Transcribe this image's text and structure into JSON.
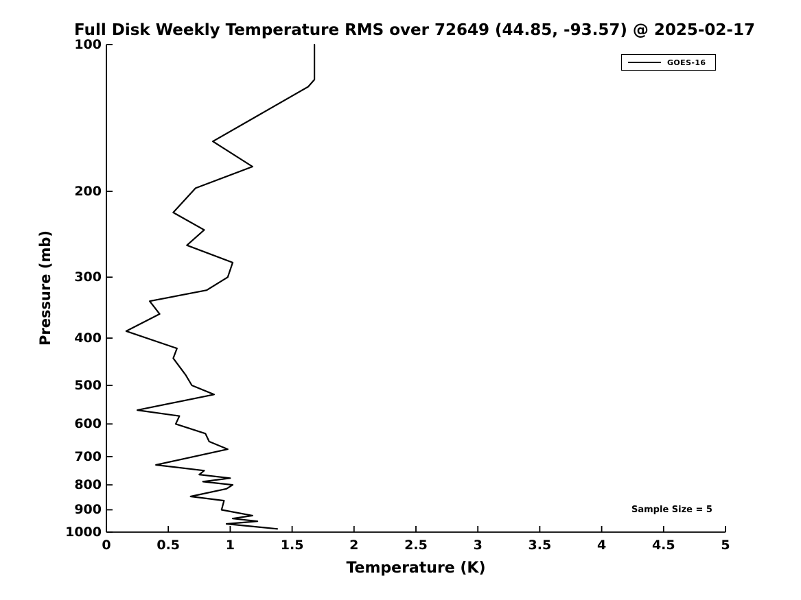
{
  "legend": {
    "label": "GOES-16"
  },
  "annotation": {
    "sample_size": "Sample Size = 5"
  },
  "chart_data": {
    "type": "line",
    "title": "Full Disk Weekly Temperature RMS over 72649 (44.85, -93.57) @ 2025-02-17",
    "xlabel": "Temperature (K)",
    "ylabel": "Pressure (mb)",
    "xlim": [
      0,
      5
    ],
    "ylim": [
      100,
      1000
    ],
    "y_scale": "log",
    "y_inverted": true,
    "grid": false,
    "legend_position": "top-right",
    "line_color": "#000000",
    "x_ticks": [
      0,
      0.5,
      1,
      1.5,
      2,
      2.5,
      3,
      3.5,
      4,
      4.5,
      5
    ],
    "x_tick_labels": [
      "0",
      "0.5",
      "1",
      "1.5",
      "2",
      "2.5",
      "3",
      "3.5",
      "4",
      "4.5",
      "5"
    ],
    "y_ticks": [
      100,
      200,
      300,
      400,
      500,
      600,
      700,
      800,
      900,
      1000
    ],
    "y_tick_labels": [
      "100",
      "200",
      "300",
      "400",
      "500",
      "600",
      "700",
      "800",
      "900",
      "1000"
    ],
    "series": [
      {
        "name": "GOES-16",
        "points_format": [
          "pressure_mb",
          "temperature_rms_K"
        ],
        "points": [
          [
            100,
            1.68
          ],
          [
            118,
            1.68
          ],
          [
            122,
            1.63
          ],
          [
            158,
            0.86
          ],
          [
            178,
            1.18
          ],
          [
            197,
            0.72
          ],
          [
            221,
            0.54
          ],
          [
            240,
            0.79
          ],
          [
            258,
            0.65
          ],
          [
            280,
            1.02
          ],
          [
            300,
            0.98
          ],
          [
            319,
            0.81
          ],
          [
            336,
            0.35
          ],
          [
            357,
            0.43
          ],
          [
            387,
            0.16
          ],
          [
            420,
            0.57
          ],
          [
            440,
            0.54
          ],
          [
            476,
            0.64
          ],
          [
            500,
            0.69
          ],
          [
            522,
            0.87
          ],
          [
            562,
            0.25
          ],
          [
            578,
            0.59
          ],
          [
            600,
            0.56
          ],
          [
            628,
            0.8
          ],
          [
            652,
            0.83
          ],
          [
            676,
            0.98
          ],
          [
            728,
            0.4
          ],
          [
            748,
            0.79
          ],
          [
            762,
            0.75
          ],
          [
            775,
            1.0
          ],
          [
            788,
            0.78
          ],
          [
            800,
            1.02
          ],
          [
            815,
            0.97
          ],
          [
            845,
            0.68
          ],
          [
            862,
            0.95
          ],
          [
            900,
            0.93
          ],
          [
            925,
            1.18
          ],
          [
            938,
            1.02
          ],
          [
            950,
            1.22
          ],
          [
            962,
            0.97
          ],
          [
            985,
            1.38
          ]
        ]
      }
    ]
  }
}
